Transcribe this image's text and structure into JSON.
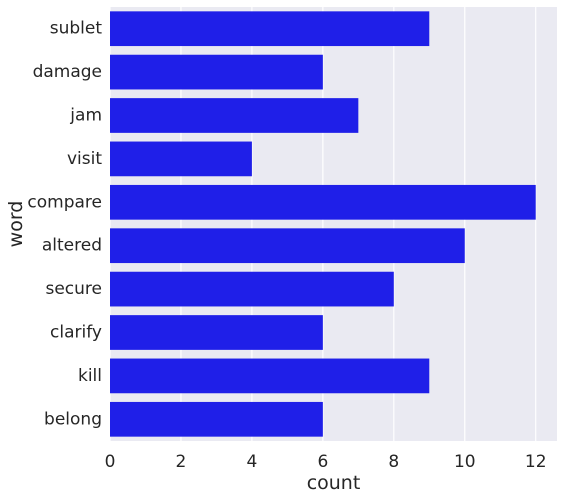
{
  "chart_data": {
    "type": "bar",
    "orientation": "horizontal",
    "categories": [
      "sublet",
      "damage",
      "jam",
      "visit",
      "compare",
      "altered",
      "secure",
      "clarify",
      "kill",
      "belong"
    ],
    "values": [
      9,
      6,
      7,
      4,
      12,
      10,
      8,
      6,
      9,
      6
    ],
    "xlabel": "count",
    "ylabel": "word",
    "xlim": [
      0,
      12.6
    ],
    "xticks": [
      0,
      2,
      4,
      6,
      8,
      10,
      12
    ],
    "grid": true,
    "colors": {
      "bar": "#1f1fe8",
      "plot_background": "#eaeaf2",
      "grid": "#ffffff"
    }
  }
}
